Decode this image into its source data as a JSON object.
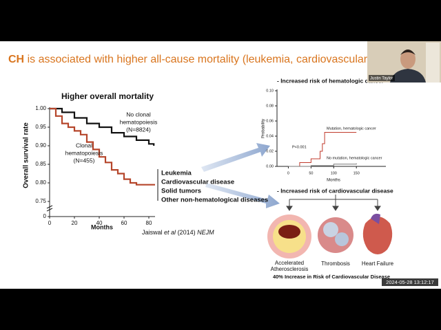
{
  "slide": {
    "title_lead": "CH",
    "title": "is associated with higher all-cause mortality (leukemia, cardiovascular disease)",
    "km_chart": {
      "type": "line",
      "title": "Higher overall mortality",
      "y_label": "Overall survival rate",
      "x_label": "Months",
      "xlim": [
        0,
        85
      ],
      "ylim": [
        0.75,
        1.0
      ],
      "xticks": [
        0,
        20,
        40,
        60,
        80
      ],
      "yticks": [
        {
          "value": 1.0,
          "label": "1.00"
        },
        0.95,
        {
          "value": 0.9,
          "label": "0.90"
        },
        0.85,
        {
          "value": 0.8,
          "label": "0.80"
        },
        0.75,
        0
      ],
      "annotations": [
        [
          "No clonal",
          "hematopoiesis",
          "(N=8824)"
        ],
        [
          "Clonal",
          "hematopoiesis",
          "(N=455)"
        ]
      ],
      "series": [
        {
          "color": "#111111",
          "x": [
            0,
            10,
            20,
            30,
            40,
            50,
            60,
            70,
            80,
            84
          ],
          "values": [
            1.0,
            0.99,
            0.975,
            0.96,
            0.95,
            0.935,
            0.925,
            0.915,
            0.905,
            0.9
          ]
        },
        {
          "color": "#b5452a",
          "x": [
            0,
            5,
            10,
            15,
            20,
            25,
            30,
            35,
            40,
            45,
            50,
            55,
            60,
            65,
            70,
            85
          ],
          "values": [
            1.0,
            0.98,
            0.96,
            0.95,
            0.94,
            0.93,
            0.91,
            0.89,
            0.87,
            0.855,
            0.835,
            0.825,
            0.81,
            0.8,
            0.795,
            0.795
          ]
        }
      ]
    },
    "outcomes": [
      "Leukemia",
      "Cardiovascular disease",
      "Solid tumors",
      "Other non-hematological diseases"
    ],
    "citation": {
      "author": "Jaiswal",
      "etal": "et al",
      "year": "(2014)",
      "journal": "NEJM"
    },
    "heme_heading": "- Increased risk of hematologic cancer",
    "heme_chart": {
      "type": "line",
      "y_label": "Probability",
      "x_label": "Months",
      "xlim": [
        -25,
        215
      ],
      "ylim": [
        0,
        0.1
      ],
      "xticks": [
        0,
        50,
        100,
        150
      ],
      "yticks": [
        {
          "value": 0,
          "label": "0.00"
        },
        0.02,
        0.04,
        0.06,
        0.08,
        {
          "value": 0.1,
          "label": "0.10"
        }
      ],
      "annotations": [
        [
          "Mutation, hematologic cancer"
        ],
        [
          "No mutation, hematologic cancer"
        ],
        [
          "P<0.001"
        ]
      ],
      "series": [
        {
          "color": "#c0392b",
          "x": [
            0,
            25,
            50,
            70,
            75,
            80,
            150
          ],
          "values": [
            0,
            0.005,
            0.01,
            0.02,
            0.03,
            0.045,
            0.045
          ]
        },
        {
          "color": "#777777",
          "x": [
            0,
            50,
            100,
            150
          ],
          "values": [
            0,
            0.001,
            0.003,
            0.004
          ]
        }
      ]
    },
    "cv_heading": "- Increased risk of cardiovascular disease",
    "cv_items": [
      [
        "Accelerated",
        "Atherosclerosis"
      ],
      [
        "Thrombosis"
      ],
      [
        "Heart Failure"
      ]
    ],
    "cv_caption": "40% Increase in Risk of Cardiovascular Disease"
  },
  "video": {
    "speaker": "Justin Taylor",
    "timestamp": "2024-05-28 13:12:17"
  }
}
